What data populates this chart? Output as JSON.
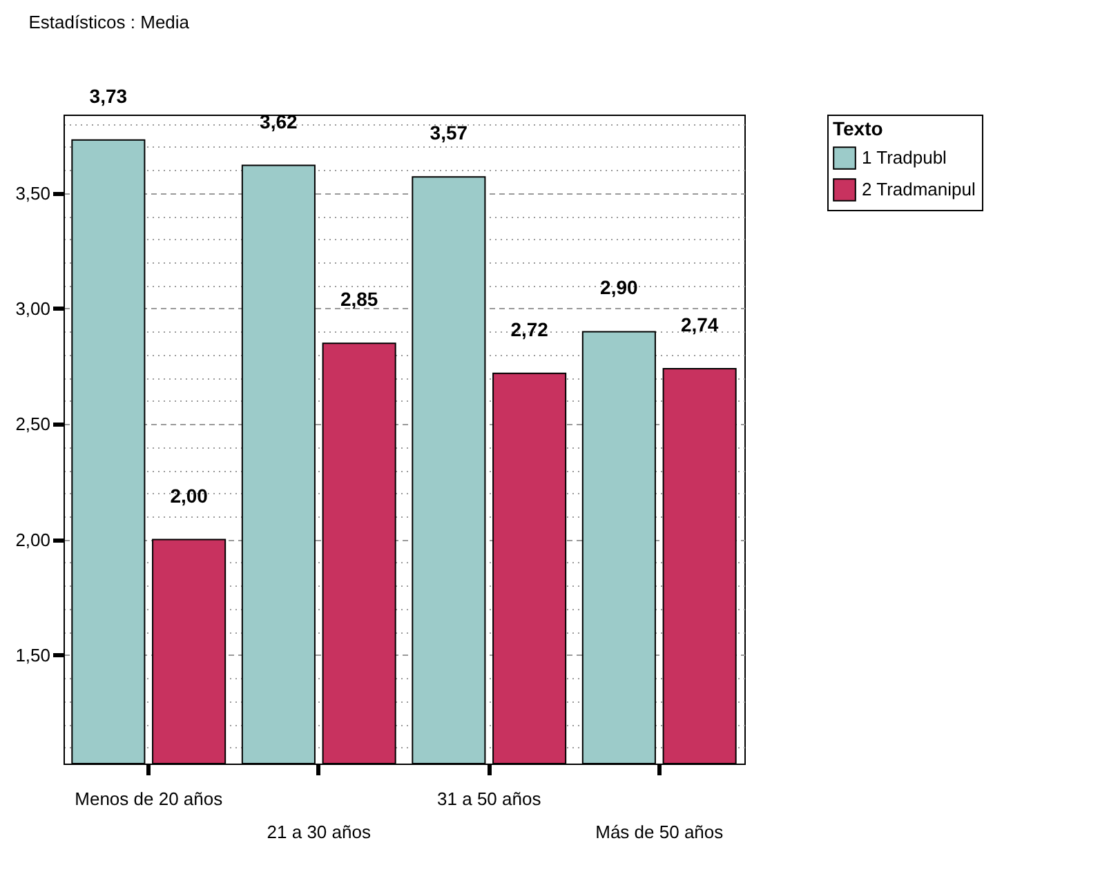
{
  "chart_data": {
    "type": "bar",
    "title": "Estadísticos : Media",
    "categories": [
      "Menos de 20 años",
      "21 a 30 años",
      "31 a 50 años",
      "Más de 50 años"
    ],
    "series": [
      {
        "name": "1 Tradpubl",
        "color": "#9ccbc9",
        "values": [
          3.73,
          3.62,
          3.57,
          2.9
        ],
        "value_labels": [
          "3,73",
          "3,62",
          "3,57",
          "2,90"
        ]
      },
      {
        "name": "2 Tradmanipul",
        "color": "#c8325f",
        "values": [
          2.0,
          2.85,
          2.72,
          2.74
        ],
        "value_labels": [
          "2,00",
          "2,85",
          "2,72",
          "2,74"
        ]
      }
    ],
    "legend_title": "Texto",
    "legend": "top right",
    "data_labels": true,
    "grid": "y",
    "ylim": [
      1.03,
      3.84
    ],
    "yticks": [
      {
        "value": 1.1,
        "label": null
      },
      {
        "value": 1.2,
        "label": null
      },
      {
        "value": 1.3,
        "label": null
      },
      {
        "value": 1.4,
        "label": null
      },
      {
        "value": 1.5,
        "label": "1,50"
      },
      {
        "value": 1.6,
        "label": null
      },
      {
        "value": 1.7,
        "label": null
      },
      {
        "value": 1.8,
        "label": null
      },
      {
        "value": 1.9,
        "label": null
      },
      {
        "value": 2.0,
        "label": "2,00"
      },
      {
        "value": 2.1,
        "label": null
      },
      {
        "value": 2.2,
        "label": null
      },
      {
        "value": 2.3,
        "label": null
      },
      {
        "value": 2.4,
        "label": null
      },
      {
        "value": 2.5,
        "label": "2,50"
      },
      {
        "value": 2.6,
        "label": null
      },
      {
        "value": 2.7,
        "label": null
      },
      {
        "value": 2.8,
        "label": null
      },
      {
        "value": 2.9,
        "label": null
      },
      {
        "value": 3.0,
        "label": "3,00"
      },
      {
        "value": 3.1,
        "label": null
      },
      {
        "value": 3.2,
        "label": null
      },
      {
        "value": 3.3,
        "label": null
      },
      {
        "value": 3.4,
        "label": null
      },
      {
        "value": 3.5,
        "label": "3,50"
      },
      {
        "value": 3.6,
        "label": null
      },
      {
        "value": 3.7,
        "label": null
      },
      {
        "value": 3.8,
        "label": null
      }
    ]
  }
}
